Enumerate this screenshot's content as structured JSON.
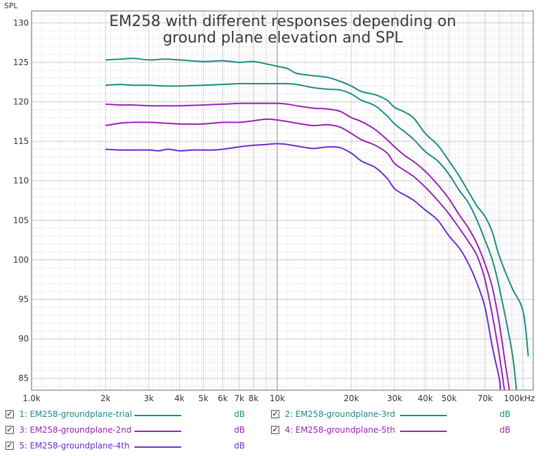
{
  "chart_data": {
    "type": "line",
    "title_lines": [
      "EM258 with different responses depending on",
      "ground plane elevation and SPL"
    ],
    "ylabel": "SPL",
    "x_scale": "log",
    "xlim": [
      1000,
      110000
    ],
    "ylim": [
      83.5,
      131.5
    ],
    "y_ticks": [
      85,
      90,
      95,
      100,
      105,
      110,
      115,
      120,
      125,
      130
    ],
    "x_ticks": [
      {
        "value": 1000,
        "label": "1.0k"
      },
      {
        "value": 2000,
        "label": "2k"
      },
      {
        "value": 3000,
        "label": "3k"
      },
      {
        "value": 4000,
        "label": "4k"
      },
      {
        "value": 5000,
        "label": "5k"
      },
      {
        "value": 6000,
        "label": "6k"
      },
      {
        "value": 7000,
        "label": "7k"
      },
      {
        "value": 8000,
        "label": "8k"
      },
      {
        "value": 10000,
        "label": "10k"
      },
      {
        "value": 20000,
        "label": "20k"
      },
      {
        "value": 30000,
        "label": "30k"
      },
      {
        "value": 40000,
        "label": "40k"
      },
      {
        "value": 50000,
        "label": "50k"
      },
      {
        "value": 70000,
        "label": "70k"
      },
      {
        "value": 100000,
        "label": "100kHz"
      }
    ],
    "grid": true,
    "series": [
      {
        "name": "1: EM258-groundplane-trial",
        "unit": "dB",
        "color": "#1a8a84",
        "x": [
          2000,
          2300,
          2600,
          3000,
          3500,
          4000,
          5000,
          6000,
          7000,
          8000,
          9000,
          10000,
          11000,
          12000,
          14000,
          16000,
          18000,
          20000,
          22000,
          25000,
          28000,
          30000,
          33000,
          36000,
          40000,
          45000,
          50000,
          55000,
          60000,
          65000,
          70000,
          75000,
          80000,
          90000,
          100000,
          105000
        ],
        "y": [
          125.3,
          125.4,
          125.5,
          125.3,
          125.4,
          125.3,
          125.1,
          125.2,
          125.0,
          125.1,
          124.8,
          124.5,
          124.2,
          123.6,
          123.3,
          123.1,
          122.6,
          122.0,
          121.3,
          120.9,
          120.2,
          119.3,
          118.7,
          117.9,
          116.0,
          114.5,
          112.5,
          110.6,
          108.6,
          106.8,
          105.5,
          103.5,
          100.5,
          96.5,
          93.5,
          87.8
        ]
      },
      {
        "name": "2: EM258-groundplane-3rd",
        "unit": "dB",
        "color": "#1a8a84",
        "x": [
          2000,
          2300,
          2600,
          3000,
          3500,
          4000,
          5000,
          6000,
          7000,
          8000,
          9000,
          10000,
          11000,
          12000,
          14000,
          16000,
          18000,
          20000,
          22000,
          25000,
          28000,
          30000,
          33000,
          36000,
          40000,
          45000,
          50000,
          55000,
          60000,
          65000,
          70000,
          75000,
          80000,
          90000,
          94000
        ],
        "y": [
          122.1,
          122.2,
          122.1,
          122.1,
          122.0,
          122.0,
          122.1,
          122.2,
          122.3,
          122.3,
          122.3,
          122.3,
          122.3,
          122.2,
          121.8,
          121.6,
          121.5,
          121.0,
          120.2,
          119.5,
          118.2,
          117.2,
          116.2,
          115.2,
          113.7,
          112.5,
          110.8,
          108.8,
          107.2,
          105.0,
          102.5,
          100.0,
          96.5,
          88.5,
          83.5
        ]
      },
      {
        "name": "3: EM258-groundplane-2nd",
        "unit": "dB",
        "color": "#9b1fb5",
        "x": [
          2000,
          2300,
          2600,
          3000,
          3500,
          4000,
          5000,
          6000,
          7000,
          8000,
          9000,
          10000,
          11000,
          12000,
          14000,
          16000,
          18000,
          20000,
          22000,
          25000,
          28000,
          30000,
          33000,
          36000,
          40000,
          45000,
          50000,
          55000,
          60000,
          65000,
          70000,
          75000,
          80000,
          85000,
          88000
        ],
        "y": [
          119.7,
          119.6,
          119.6,
          119.5,
          119.5,
          119.5,
          119.6,
          119.7,
          119.8,
          119.8,
          119.8,
          119.8,
          119.7,
          119.5,
          119.2,
          119.1,
          118.8,
          118.0,
          117.5,
          116.5,
          115.2,
          114.3,
          113.2,
          112.4,
          111.2,
          109.5,
          107.7,
          105.7,
          104.0,
          102.0,
          99.5,
          96.5,
          92.0,
          86.5,
          83.5
        ]
      },
      {
        "name": "4: EM258-groundplane-5th",
        "unit": "dB",
        "color": "#9b1fb5",
        "x": [
          2000,
          2300,
          2600,
          3000,
          3500,
          4000,
          5000,
          6000,
          7000,
          8000,
          9000,
          10000,
          11000,
          12000,
          14000,
          16000,
          18000,
          20000,
          22000,
          25000,
          28000,
          30000,
          33000,
          36000,
          40000,
          45000,
          50000,
          55000,
          60000,
          65000,
          70000,
          75000,
          80000,
          84000
        ],
        "y": [
          117.0,
          117.3,
          117.4,
          117.4,
          117.3,
          117.2,
          117.2,
          117.4,
          117.4,
          117.6,
          117.8,
          117.7,
          117.5,
          117.3,
          117.0,
          117.1,
          116.8,
          116.0,
          115.2,
          114.5,
          113.5,
          112.2,
          111.3,
          110.5,
          109.2,
          107.5,
          105.8,
          104.0,
          102.3,
          100.5,
          97.5,
          93.0,
          88.0,
          83.5
        ]
      },
      {
        "name": "5: EM258-groundplane-4th",
        "unit": "dB",
        "color": "#6a2bd1",
        "x": [
          2000,
          2300,
          2600,
          3000,
          3300,
          3600,
          4000,
          4500,
          5000,
          5500,
          6000,
          7000,
          8000,
          9000,
          10000,
          11000,
          12000,
          14000,
          16000,
          18000,
          20000,
          22000,
          25000,
          28000,
          30000,
          33000,
          36000,
          40000,
          45000,
          50000,
          55000,
          60000,
          65000,
          70000,
          75000,
          80000,
          81000
        ],
        "y": [
          114.0,
          113.9,
          113.9,
          113.9,
          113.8,
          114.0,
          113.8,
          113.9,
          113.9,
          113.9,
          114.0,
          114.3,
          114.5,
          114.6,
          114.7,
          114.6,
          114.4,
          114.1,
          114.3,
          114.2,
          113.5,
          112.5,
          111.7,
          110.3,
          109.0,
          108.2,
          107.5,
          106.3,
          105.0,
          103.0,
          101.5,
          99.5,
          97.0,
          94.0,
          89.0,
          85.0,
          83.5
        ]
      }
    ]
  }
}
